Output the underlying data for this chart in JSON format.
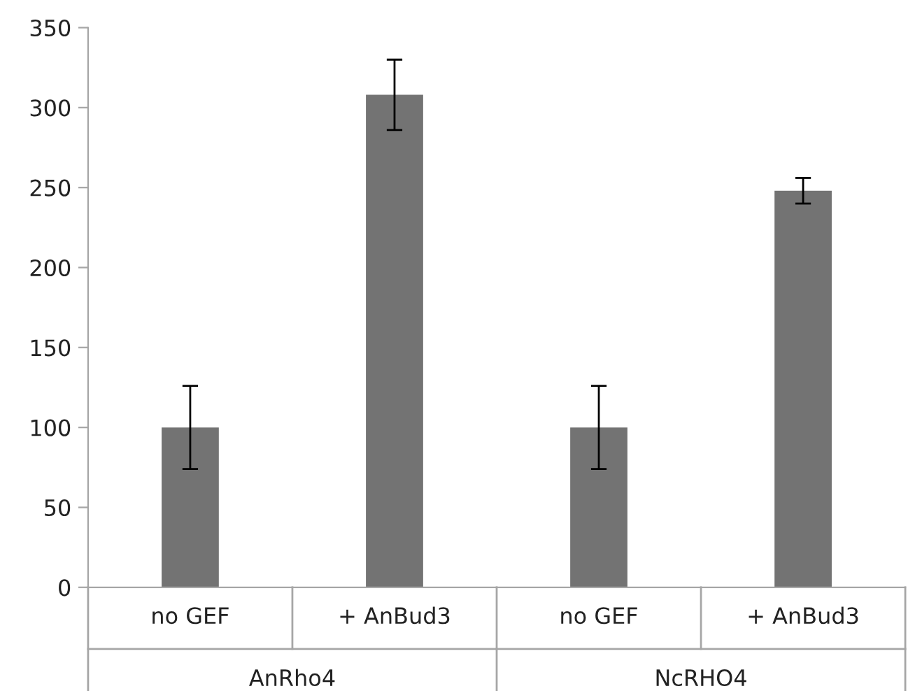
{
  "chart_data": {
    "type": "bar",
    "categories": [
      "no GEF",
      "+ AnBud3",
      "no GEF",
      "+ AnBud3"
    ],
    "values": [
      100,
      308,
      100,
      248
    ],
    "errors": [
      [
        74,
        126
      ],
      [
        286,
        330
      ],
      [
        74,
        126
      ],
      [
        240,
        256
      ]
    ],
    "color": "#737373",
    "ylim": [
      0,
      350
    ],
    "yticks": [
      0,
      50,
      100,
      150,
      200,
      250,
      300,
      350
    ],
    "annotations": [
      "AnRho4",
      "NcRHO4"
    ],
    "grid": false
  }
}
